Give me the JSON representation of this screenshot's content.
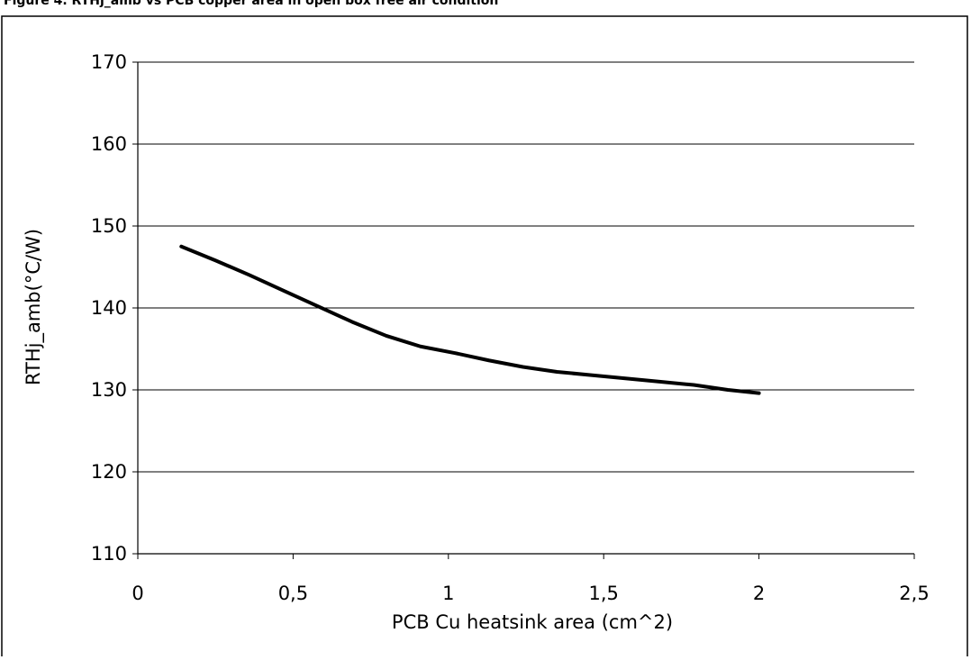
{
  "figure": {
    "caption": "Figure 4. RTHj_amb vs PCB copper area in open box free air condition"
  },
  "chart_data": {
    "type": "line",
    "title": "",
    "xlabel": "PCB Cu heatsink area (cm^2)",
    "ylabel": "RTHj_amb(°C/W)",
    "xlim": [
      0,
      2.5
    ],
    "ylim": [
      110,
      170
    ],
    "x_ticks": [
      0,
      0.5,
      1,
      1.5,
      2,
      2.5
    ],
    "x_tick_labels": [
      "0",
      "0,5",
      "1",
      "1,5",
      "2",
      "2,5"
    ],
    "y_ticks": [
      110,
      120,
      130,
      140,
      150,
      160,
      170
    ],
    "y_tick_labels": [
      "110",
      "120",
      "130",
      "140",
      "150",
      "160",
      "170"
    ],
    "grid": "horizontal",
    "legend": "none",
    "line_color": "#000000",
    "series": [
      {
        "x": [
          0.14,
          0.25,
          0.36,
          0.47,
          0.58,
          0.69,
          0.8,
          0.91,
          1.02,
          1.13,
          1.24,
          1.35,
          1.46,
          1.57,
          1.68,
          1.79,
          1.9,
          2.0
        ],
        "values": [
          147.5,
          145.8,
          144.0,
          142.1,
          140.2,
          138.3,
          136.6,
          135.3,
          134.5,
          133.6,
          132.8,
          132.2,
          131.8,
          131.4,
          131.0,
          130.6,
          130.0,
          129.6
        ]
      }
    ]
  }
}
